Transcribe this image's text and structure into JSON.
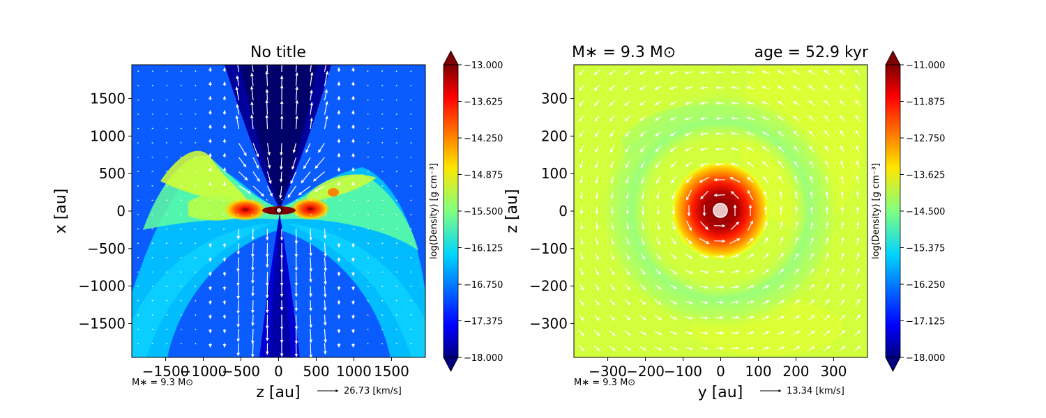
{
  "chart_data": [
    {
      "type": "heatmap",
      "title": "No title",
      "xlabel": "z [au]",
      "ylabel": "x [au]",
      "xlim": [
        -1950,
        1950
      ],
      "ylim": [
        -1950,
        1950
      ],
      "xticks": [
        -1500,
        -1000,
        -500,
        0,
        500,
        1000,
        1500
      ],
      "yticks": [
        -1500,
        -1000,
        -500,
        0,
        500,
        1000,
        1500
      ],
      "xtick_labels": [
        "−1500",
        "−1000",
        "−500",
        "0",
        "500",
        "1000",
        "1500"
      ],
      "ytick_labels": [
        "−1500",
        "−1000",
        "−500",
        "0",
        "500",
        "1000",
        "1500"
      ],
      "colorbar": {
        "label": "log(Density) [g cm⁻³]",
        "range": [
          -18.0,
          -13.0
        ],
        "ticks": [
          "−13.000",
          "−13.625",
          "−14.250",
          "−14.875",
          "−15.500",
          "−16.125",
          "−16.750",
          "−17.375",
          "−18.000"
        ]
      },
      "footnote": "M∗ = 9.3 M⊙",
      "velocity_key": "26.73 [km/s]",
      "field": "edge-on bipolar outflow: dense disk midplane at x≈0 (peak ≈ −13.2), low-density outflow cone along |z| < 400 (≈ −18)"
    },
    {
      "type": "heatmap",
      "title_left": "M∗ = 9.3 M⊙",
      "title_right": "age = 52.9 kyr",
      "xlabel": "y [au]",
      "ylabel": "z [au]",
      "xlim": [
        -390,
        390
      ],
      "ylim": [
        -390,
        390
      ],
      "xticks": [
        -300,
        -200,
        -100,
        0,
        100,
        200,
        300
      ],
      "yticks": [
        -300,
        -200,
        -100,
        0,
        100,
        200,
        300
      ],
      "xtick_labels": [
        "−300",
        "−200",
        "−100",
        "0",
        "100",
        "200",
        "300"
      ],
      "ytick_labels": [
        "−300",
        "−200",
        "−100",
        "0",
        "100",
        "200",
        "300"
      ],
      "colorbar": {
        "label": "log(Density) [g cm⁻³]",
        "range": [
          -18.0,
          -11.0
        ],
        "ticks": [
          "−11.000",
          "−11.875",
          "−12.750",
          "−13.625",
          "−14.500",
          "−15.375",
          "−16.250",
          "−17.125",
          "−18.000"
        ]
      },
      "footnote": "M∗ = 9.3 M⊙",
      "velocity_key": "13.34 [km/s]",
      "field": "face-on disk: central density peak ≈ −11.2 within r < 60 au, background ≈ −13.8, rotating velocity field"
    }
  ]
}
